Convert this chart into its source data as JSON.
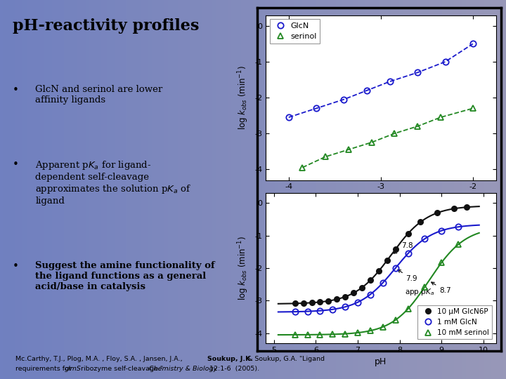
{
  "bg_color_left": "#8090c8",
  "bg_color_right": "#9090b8",
  "title": "pH-reactivity profiles",
  "panel1": {
    "xlim": [
      -4.25,
      -1.75
    ],
    "ylim": [
      -4.3,
      0.3
    ],
    "xticks": [
      -4,
      -3,
      -2
    ],
    "yticks": [
      0,
      -1,
      -2,
      -3,
      -4
    ],
    "GlcN_x": [
      -4.0,
      -3.7,
      -3.4,
      -3.15,
      -2.9,
      -2.6,
      -2.3,
      -2.0
    ],
    "GlcN_y": [
      -2.55,
      -2.3,
      -2.05,
      -1.8,
      -1.55,
      -1.3,
      -1.0,
      -0.5
    ],
    "serinol_x": [
      -3.85,
      -3.6,
      -3.35,
      -3.1,
      -2.85,
      -2.6,
      -2.35,
      -2.0
    ],
    "serinol_y": [
      -3.95,
      -3.65,
      -3.45,
      -3.25,
      -3.0,
      -2.8,
      -2.55,
      -2.3
    ],
    "GlcN_color": "#1a1acc",
    "serinol_color": "#228822"
  },
  "panel2": {
    "xlim": [
      4.8,
      10.3
    ],
    "ylim": [
      -4.3,
      0.3
    ],
    "xticks": [
      5,
      6,
      7,
      8,
      9,
      10
    ],
    "yticks": [
      0,
      -1,
      -2,
      -3,
      -4
    ],
    "GlcN6P_pka": 7.8,
    "GlcN6P_ymin": -3.1,
    "GlcN6P_ymax": -0.08,
    "GlcN_pka": 7.9,
    "GlcN_ymin": -3.35,
    "GlcN_ymax": -0.65,
    "serinol_pka": 8.7,
    "serinol_ymin": -4.05,
    "serinol_ymax": -0.72,
    "GlcN6P_pts_x": [
      5.5,
      5.7,
      5.9,
      6.1,
      6.3,
      6.5,
      6.7,
      6.9,
      7.1,
      7.3,
      7.5,
      7.7,
      7.9,
      8.2,
      8.5,
      8.9,
      9.3,
      9.6
    ],
    "GlcN_pts_x": [
      5.5,
      5.8,
      6.1,
      6.4,
      6.7,
      7.0,
      7.3,
      7.6,
      7.9,
      8.2,
      8.6,
      9.0,
      9.4
    ],
    "serinol_pts_x": [
      5.5,
      5.8,
      6.1,
      6.4,
      6.7,
      7.0,
      7.3,
      7.6,
      7.9,
      8.2,
      8.6,
      9.0,
      9.4
    ],
    "GlcN6P_color": "#111111",
    "GlcN_color": "#1a1acc",
    "serinol_color": "#228822"
  }
}
